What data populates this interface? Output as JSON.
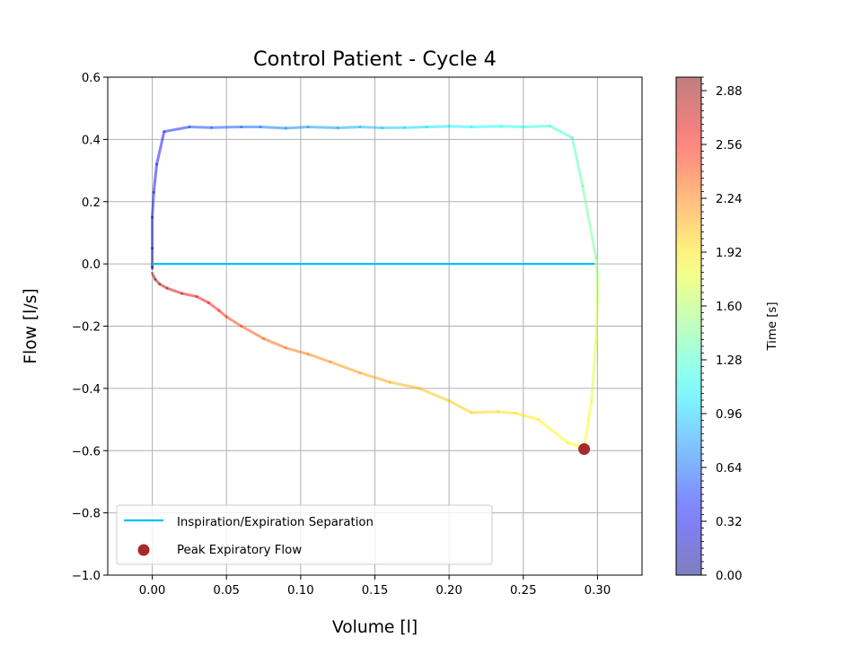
{
  "chart_data": {
    "type": "line",
    "title": "Control Patient - Cycle 4",
    "xlabel": "Volume [l]",
    "ylabel": "Flow [l/s]",
    "xlim": [
      -0.03,
      0.33
    ],
    "ylim": [
      -1.0,
      0.6
    ],
    "xticks": [
      0.0,
      0.05,
      0.1,
      0.15,
      0.2,
      0.25,
      0.3
    ],
    "xtick_labels": [
      "0.00",
      "0.05",
      "0.10",
      "0.15",
      "0.20",
      "0.25",
      "0.30"
    ],
    "yticks": [
      0.6,
      0.4,
      0.2,
      0.0,
      -0.2,
      -0.4,
      -0.6,
      -0.8,
      -1.0
    ],
    "ytick_labels": [
      "0.6",
      "0.4",
      "0.2",
      "0.0",
      "−0.2",
      "−0.4",
      "−0.6",
      "−0.8",
      "−1.0"
    ],
    "grid": true,
    "legend_position": "lower-left",
    "colormap": "jet",
    "colormap_alpha": 0.5,
    "series": [
      {
        "name": "Inspiration/Expiration Separation",
        "color": "#00bfff",
        "x": [
          0.0,
          0.298
        ],
        "y": [
          0.0,
          0.0
        ]
      },
      {
        "name": "Peak Expiratory Flow",
        "type": "scatter",
        "color": "#a52a2a",
        "x": [
          0.291
        ],
        "y": [
          -0.595
        ]
      },
      {
        "type": "colored-line",
        "colored_by": "time",
        "x": [
          0.0,
          0.0,
          0.0,
          0.0,
          0.001,
          0.003,
          0.008,
          0.025,
          0.04,
          0.06,
          0.073,
          0.09,
          0.105,
          0.125,
          0.14,
          0.155,
          0.17,
          0.185,
          0.2,
          0.215,
          0.235,
          0.25,
          0.268,
          0.283,
          0.29,
          0.299,
          0.3,
          0.3,
          0.299,
          0.296,
          0.294,
          0.291,
          0.28,
          0.26,
          0.245,
          0.233,
          0.215,
          0.2,
          0.18,
          0.16,
          0.14,
          0.12,
          0.105,
          0.09,
          0.075,
          0.06,
          0.05,
          0.045,
          0.038,
          0.03,
          0.02,
          0.01,
          0.005,
          0.002,
          0.0
        ],
        "y": [
          -0.015,
          -0.01,
          0.05,
          0.15,
          0.23,
          0.32,
          0.425,
          0.44,
          0.438,
          0.44,
          0.44,
          0.436,
          0.44,
          0.437,
          0.44,
          0.437,
          0.438,
          0.44,
          0.442,
          0.44,
          0.442,
          0.44,
          0.443,
          0.405,
          0.25,
          0.02,
          -0.05,
          -0.12,
          -0.25,
          -0.44,
          -0.5,
          -0.59,
          -0.575,
          -0.5,
          -0.48,
          -0.475,
          -0.478,
          -0.44,
          -0.4,
          -0.38,
          -0.35,
          -0.315,
          -0.29,
          -0.27,
          -0.24,
          -0.2,
          -0.17,
          -0.15,
          -0.125,
          -0.105,
          -0.095,
          -0.078,
          -0.065,
          -0.05,
          -0.03
        ],
        "t": [
          0.0,
          0.05,
          0.12,
          0.2,
          0.28,
          0.35,
          0.42,
          0.5,
          0.56,
          0.62,
          0.67,
          0.72,
          0.77,
          0.82,
          0.87,
          0.92,
          0.97,
          1.01,
          1.05,
          1.09,
          1.13,
          1.17,
          1.22,
          1.3,
          1.38,
          1.48,
          1.6,
          1.68,
          1.74,
          1.78,
          1.81,
          1.84,
          1.87,
          1.9,
          1.93,
          1.96,
          1.99,
          2.02,
          2.06,
          2.1,
          2.15,
          2.2,
          2.25,
          2.3,
          2.36,
          2.42,
          2.48,
          2.53,
          2.58,
          2.64,
          2.7,
          2.76,
          2.82,
          2.88,
          2.95
        ]
      }
    ],
    "colorbar": {
      "label": "Time [s]",
      "vmin": 0.0,
      "vmax": 2.96,
      "ticks": [
        0.0,
        0.32,
        0.64,
        0.96,
        1.28,
        1.6,
        1.92,
        2.24,
        2.56,
        2.88
      ],
      "tick_labels": [
        "0.00",
        "0.32",
        "0.64",
        "0.96",
        "1.28",
        "1.60",
        "1.92",
        "2.24",
        "2.56",
        "2.88"
      ]
    }
  }
}
